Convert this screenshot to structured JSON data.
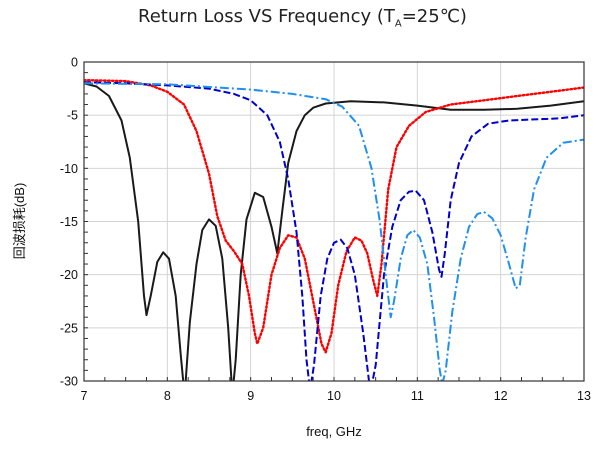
{
  "chart_data": {
    "type": "line",
    "title_prefix": "Return Loss VS Frequency (T",
    "title_sub": "A",
    "title_suffix": "=25℃)",
    "xlabel": "freq, GHz",
    "ylabel": "回波损耗(dB)",
    "xlim": [
      7,
      13
    ],
    "ylim": [
      -30,
      0
    ],
    "xticks": [
      "7",
      "8",
      "9",
      "10",
      "11",
      "12",
      "13"
    ],
    "yticks": [
      "0",
      "-5",
      "-10",
      "-15",
      "-20",
      "-25",
      "-30"
    ],
    "grid": true,
    "legend": "none",
    "series": [
      {
        "color": "#1a1a1a",
        "style": "solid",
        "points": [
          [
            7.0,
            -2.0
          ],
          [
            7.15,
            -2.3
          ],
          [
            7.3,
            -3.2
          ],
          [
            7.45,
            -5.5
          ],
          [
            7.55,
            -9.0
          ],
          [
            7.65,
            -15.0
          ],
          [
            7.72,
            -22.0
          ],
          [
            7.75,
            -23.8
          ],
          [
            7.8,
            -22.0
          ],
          [
            7.88,
            -18.8
          ],
          [
            7.95,
            -17.9
          ],
          [
            8.02,
            -18.5
          ],
          [
            8.1,
            -22.0
          ],
          [
            8.16,
            -27.5
          ],
          [
            8.19,
            -30.0
          ],
          [
            8.2,
            -30.5
          ],
          [
            8.22,
            -30.0
          ],
          [
            8.27,
            -24.5
          ],
          [
            8.35,
            -19.0
          ],
          [
            8.42,
            -15.8
          ],
          [
            8.5,
            -14.8
          ],
          [
            8.58,
            -15.4
          ],
          [
            8.66,
            -18.5
          ],
          [
            8.73,
            -25.0
          ],
          [
            8.77,
            -30.0
          ],
          [
            8.79,
            -30.5
          ],
          [
            8.82,
            -28.0
          ],
          [
            8.88,
            -20.0
          ],
          [
            8.95,
            -14.8
          ],
          [
            9.05,
            -12.3
          ],
          [
            9.15,
            -12.7
          ],
          [
            9.25,
            -15.5
          ],
          [
            9.32,
            -18.0
          ],
          [
            9.38,
            -14.0
          ],
          [
            9.45,
            -9.5
          ],
          [
            9.55,
            -6.5
          ],
          [
            9.65,
            -5.0
          ],
          [
            9.75,
            -4.3
          ],
          [
            9.9,
            -3.9
          ],
          [
            10.2,
            -3.7
          ],
          [
            10.6,
            -3.8
          ],
          [
            11.0,
            -4.1
          ],
          [
            11.4,
            -4.5
          ],
          [
            11.8,
            -4.5
          ],
          [
            12.2,
            -4.4
          ],
          [
            12.6,
            -4.1
          ],
          [
            13.0,
            -3.7
          ]
        ]
      },
      {
        "color": "#ff0000",
        "style": "dotted",
        "points": [
          [
            7.0,
            -1.7
          ],
          [
            7.5,
            -1.8
          ],
          [
            7.8,
            -2.2
          ],
          [
            8.0,
            -2.8
          ],
          [
            8.2,
            -4.0
          ],
          [
            8.35,
            -6.5
          ],
          [
            8.5,
            -10.5
          ],
          [
            8.6,
            -14.5
          ],
          [
            8.7,
            -16.8
          ],
          [
            8.8,
            -17.8
          ],
          [
            8.9,
            -19.0
          ],
          [
            8.98,
            -22.0
          ],
          [
            9.05,
            -25.5
          ],
          [
            9.08,
            -26.5
          ],
          [
            9.15,
            -25.0
          ],
          [
            9.25,
            -20.0
          ],
          [
            9.35,
            -17.5
          ],
          [
            9.45,
            -16.3
          ],
          [
            9.55,
            -16.5
          ],
          [
            9.65,
            -18.5
          ],
          [
            9.75,
            -22.5
          ],
          [
            9.85,
            -26.5
          ],
          [
            9.9,
            -27.3
          ],
          [
            9.97,
            -25.5
          ],
          [
            10.05,
            -21.0
          ],
          [
            10.15,
            -17.8
          ],
          [
            10.25,
            -16.5
          ],
          [
            10.33,
            -16.8
          ],
          [
            10.4,
            -18.0
          ],
          [
            10.47,
            -20.5
          ],
          [
            10.52,
            -22.0
          ],
          [
            10.57,
            -19.0
          ],
          [
            10.65,
            -12.0
          ],
          [
            10.75,
            -8.0
          ],
          [
            10.9,
            -6.0
          ],
          [
            11.1,
            -4.7
          ],
          [
            11.4,
            -4.0
          ],
          [
            11.8,
            -3.6
          ],
          [
            12.2,
            -3.2
          ],
          [
            12.6,
            -2.8
          ],
          [
            13.0,
            -2.4
          ]
        ]
      },
      {
        "color": "#0000cc",
        "style": "dashed",
        "points": [
          [
            7.0,
            -1.9
          ],
          [
            7.5,
            -2.0
          ],
          [
            8.0,
            -2.2
          ],
          [
            8.5,
            -2.5
          ],
          [
            8.8,
            -3.0
          ],
          [
            9.0,
            -3.6
          ],
          [
            9.2,
            -5.0
          ],
          [
            9.35,
            -7.5
          ],
          [
            9.45,
            -11.0
          ],
          [
            9.55,
            -16.0
          ],
          [
            9.62,
            -22.0
          ],
          [
            9.67,
            -28.0
          ],
          [
            9.7,
            -30.0
          ],
          [
            9.72,
            -30.5
          ],
          [
            9.76,
            -28.5
          ],
          [
            9.84,
            -22.0
          ],
          [
            9.92,
            -18.5
          ],
          [
            10.0,
            -17.0
          ],
          [
            10.08,
            -16.7
          ],
          [
            10.16,
            -17.5
          ],
          [
            10.25,
            -20.0
          ],
          [
            10.35,
            -25.5
          ],
          [
            10.42,
            -30.0
          ],
          [
            10.45,
            -30.5
          ],
          [
            10.5,
            -28.5
          ],
          [
            10.6,
            -20.0
          ],
          [
            10.7,
            -15.5
          ],
          [
            10.8,
            -13.0
          ],
          [
            10.9,
            -12.2
          ],
          [
            10.98,
            -12.1
          ],
          [
            11.08,
            -13.0
          ],
          [
            11.18,
            -16.0
          ],
          [
            11.26,
            -19.5
          ],
          [
            11.29,
            -20.2
          ],
          [
            11.33,
            -18.0
          ],
          [
            11.4,
            -13.0
          ],
          [
            11.5,
            -9.5
          ],
          [
            11.65,
            -7.0
          ],
          [
            11.85,
            -5.8
          ],
          [
            12.1,
            -5.5
          ],
          [
            12.4,
            -5.4
          ],
          [
            12.7,
            -5.3
          ],
          [
            13.0,
            -5.0
          ]
        ]
      },
      {
        "color": "#2090ee",
        "style": "dashdot",
        "points": [
          [
            7.0,
            -2.0
          ],
          [
            8.0,
            -2.1
          ],
          [
            9.0,
            -2.6
          ],
          [
            9.5,
            -3.0
          ],
          [
            9.9,
            -3.5
          ],
          [
            10.1,
            -4.2
          ],
          [
            10.3,
            -6.0
          ],
          [
            10.45,
            -10.0
          ],
          [
            10.55,
            -15.0
          ],
          [
            10.62,
            -20.0
          ],
          [
            10.68,
            -24.0
          ],
          [
            10.72,
            -22.5
          ],
          [
            10.8,
            -18.5
          ],
          [
            10.88,
            -16.3
          ],
          [
            10.95,
            -15.8
          ],
          [
            11.03,
            -16.5
          ],
          [
            11.12,
            -19.0
          ],
          [
            11.2,
            -24.0
          ],
          [
            11.27,
            -29.0
          ],
          [
            11.3,
            -30.3
          ],
          [
            11.34,
            -29.0
          ],
          [
            11.42,
            -23.5
          ],
          [
            11.52,
            -18.5
          ],
          [
            11.62,
            -15.5
          ],
          [
            11.72,
            -14.3
          ],
          [
            11.8,
            -14.1
          ],
          [
            11.9,
            -14.7
          ],
          [
            12.0,
            -16.3
          ],
          [
            12.1,
            -19.0
          ],
          [
            12.18,
            -21.3
          ],
          [
            12.23,
            -21.0
          ],
          [
            12.3,
            -16.5
          ],
          [
            12.4,
            -12.0
          ],
          [
            12.55,
            -9.0
          ],
          [
            12.75,
            -7.6
          ],
          [
            13.0,
            -7.3
          ]
        ]
      }
    ]
  }
}
